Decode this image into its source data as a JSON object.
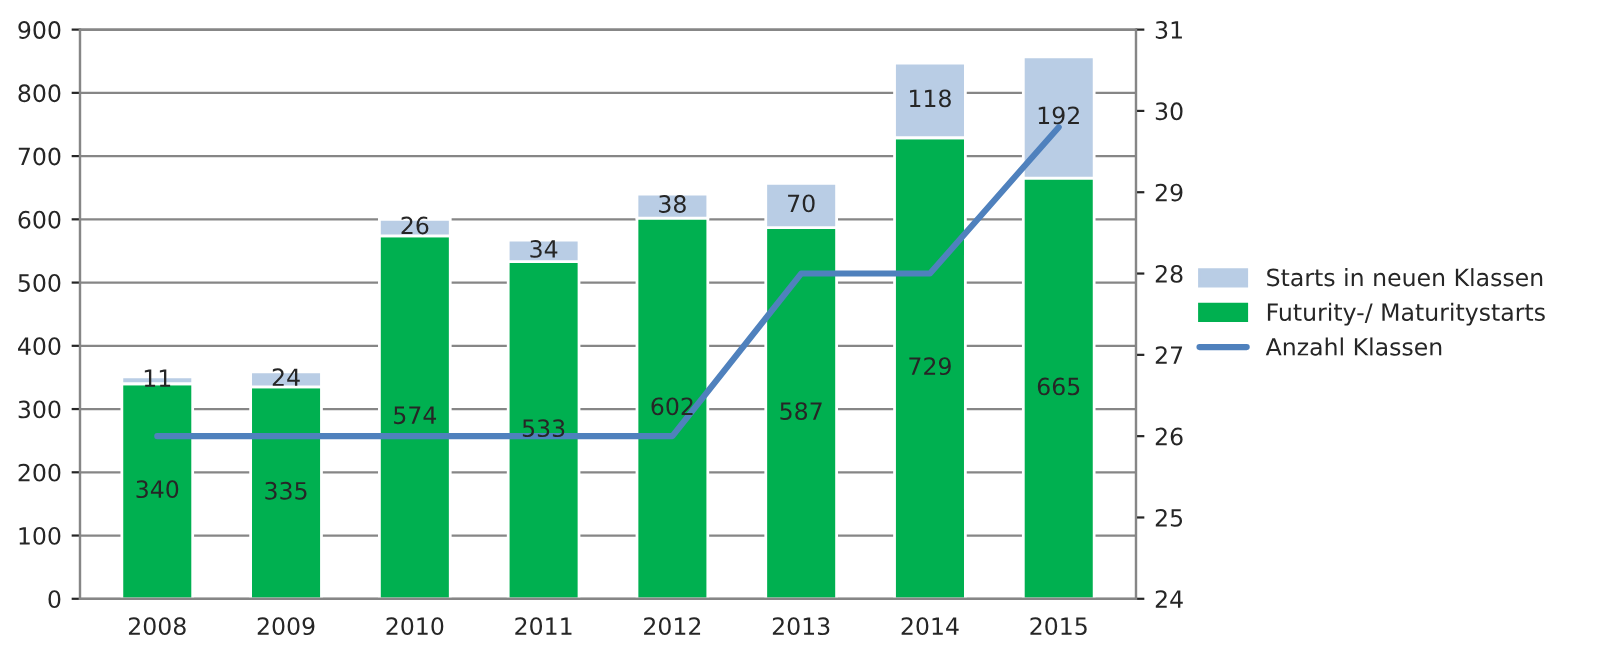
{
  "chart_data": {
    "type": "bar",
    "stacked": true,
    "categories": [
      "2008",
      "2009",
      "2010",
      "2011",
      "2012",
      "2013",
      "2014",
      "2015"
    ],
    "series": [
      {
        "name": "Futurity-/ Maturitystarts",
        "color": "#00b050",
        "values": [
          340,
          335,
          574,
          533,
          602,
          587,
          729,
          665
        ],
        "value_labels": [
          "340",
          "335",
          "574",
          "533",
          "602",
          "587",
          "729",
          "665"
        ]
      },
      {
        "name": "Starts in neuen Klassen",
        "color": "#b9cde5",
        "values": [
          11,
          24,
          26,
          34,
          38,
          70,
          118,
          192
        ],
        "value_labels": [
          "11",
          "24",
          "26",
          "34",
          "38",
          "70",
          "118",
          "192"
        ]
      },
      {
        "name": "Anzahl Klassen",
        "type": "line",
        "axis": "y2",
        "color": "#4f81bd",
        "values": [
          26,
          26,
          26,
          26,
          26,
          28,
          28,
          29.8
        ]
      }
    ],
    "ylim": [
      0,
      900
    ],
    "yticks": [
      0,
      100,
      200,
      300,
      400,
      500,
      600,
      700,
      800,
      900
    ],
    "y2lim": [
      24,
      31
    ],
    "y2ticks": [
      24,
      25,
      26,
      27,
      28,
      29,
      30,
      31
    ],
    "grid": "y",
    "legend": "right"
  }
}
